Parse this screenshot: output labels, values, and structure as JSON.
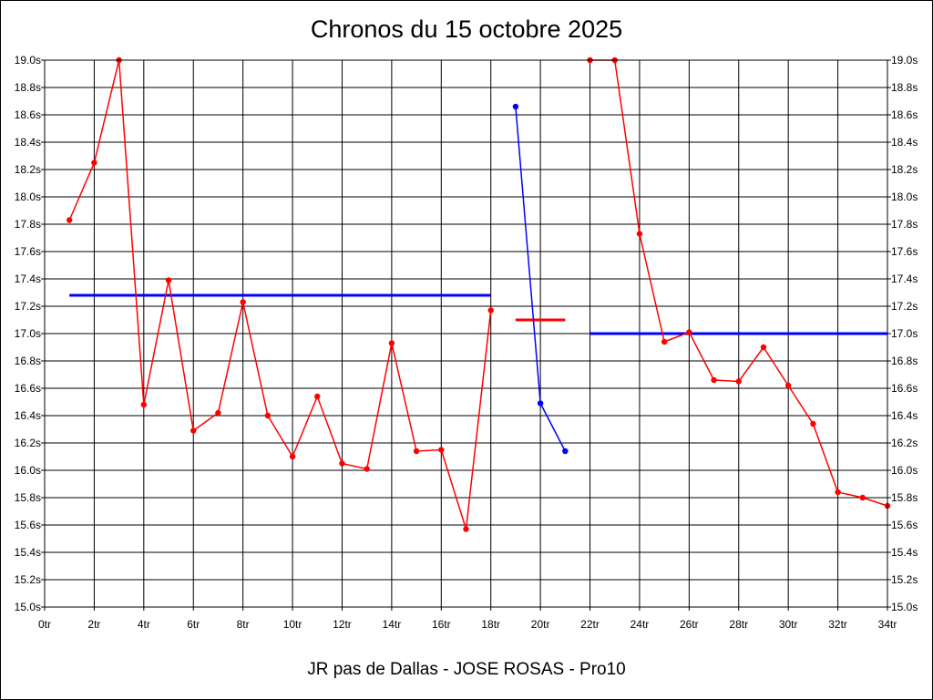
{
  "chart_data": {
    "type": "line",
    "title": "Chronos du 15 octobre 2025",
    "subtitle": "JR pas de Dallas - JOSE ROSAS - Pro10",
    "xlim": [
      0,
      34
    ],
    "ylim": [
      15.0,
      19.0
    ],
    "x_ticks": [
      0,
      2,
      4,
      6,
      8,
      10,
      12,
      14,
      16,
      18,
      20,
      22,
      24,
      26,
      28,
      30,
      32,
      34
    ],
    "x_tick_labels": [
      "0tr",
      "2tr",
      "4tr",
      "6tr",
      "8tr",
      "10tr",
      "12tr",
      "14tr",
      "16tr",
      "18tr",
      "20tr",
      "22tr",
      "24tr",
      "26tr",
      "28tr",
      "30tr",
      "32tr",
      "34tr"
    ],
    "y_ticks": [
      15.0,
      15.2,
      15.4,
      15.6,
      15.8,
      16.0,
      16.2,
      16.4,
      16.6,
      16.8,
      17.0,
      17.2,
      17.4,
      17.6,
      17.8,
      18.0,
      18.2,
      18.4,
      18.6,
      18.8,
      19.0
    ],
    "y_tick_labels": [
      "15.0s",
      "15.2s",
      "15.4s",
      "15.6s",
      "15.8s",
      "16.0s",
      "16.2s",
      "16.4s",
      "16.6s",
      "16.8s",
      "17.0s",
      "17.2s",
      "17.4s",
      "17.6s",
      "17.8s",
      "18.0s",
      "18.2s",
      "18.4s",
      "18.6s",
      "18.8s",
      "19.0s"
    ],
    "y_axis_both_sides": true,
    "grid": true,
    "legend": "none",
    "series": [
      {
        "color": "#ff0000",
        "x": [
          1,
          2,
          3,
          4,
          5,
          6,
          7,
          8,
          9,
          10,
          11,
          12,
          13,
          14,
          15,
          16,
          17,
          18
        ],
        "y": [
          17.83,
          18.25,
          19.0,
          16.48,
          17.39,
          16.29,
          16.42,
          17.23,
          16.4,
          16.1,
          16.54,
          16.05,
          16.01,
          16.93,
          16.14,
          16.15,
          15.57,
          17.17
        ]
      },
      {
        "color": "#0000ff",
        "x": [
          19,
          20,
          21
        ],
        "y": [
          18.66,
          16.49,
          16.14
        ]
      },
      {
        "color": "#ff0000",
        "x": [
          22,
          23,
          24,
          25,
          26,
          27,
          28,
          29,
          30,
          31,
          32,
          33,
          34
        ],
        "y": [
          19.0,
          19.0,
          17.73,
          16.94,
          17.01,
          16.66,
          16.65,
          16.9,
          16.62,
          16.34,
          15.84,
          15.8,
          15.74
        ]
      }
    ],
    "reference_lines": [
      {
        "color": "#0000ff",
        "x_start": 1,
        "x_end": 18,
        "y": 17.28
      },
      {
        "color": "#ff0000",
        "x_start": 19,
        "x_end": 21,
        "y": 17.1
      },
      {
        "color": "#0000ff",
        "x_start": 22,
        "x_end": 34,
        "y": 17.0
      }
    ]
  }
}
